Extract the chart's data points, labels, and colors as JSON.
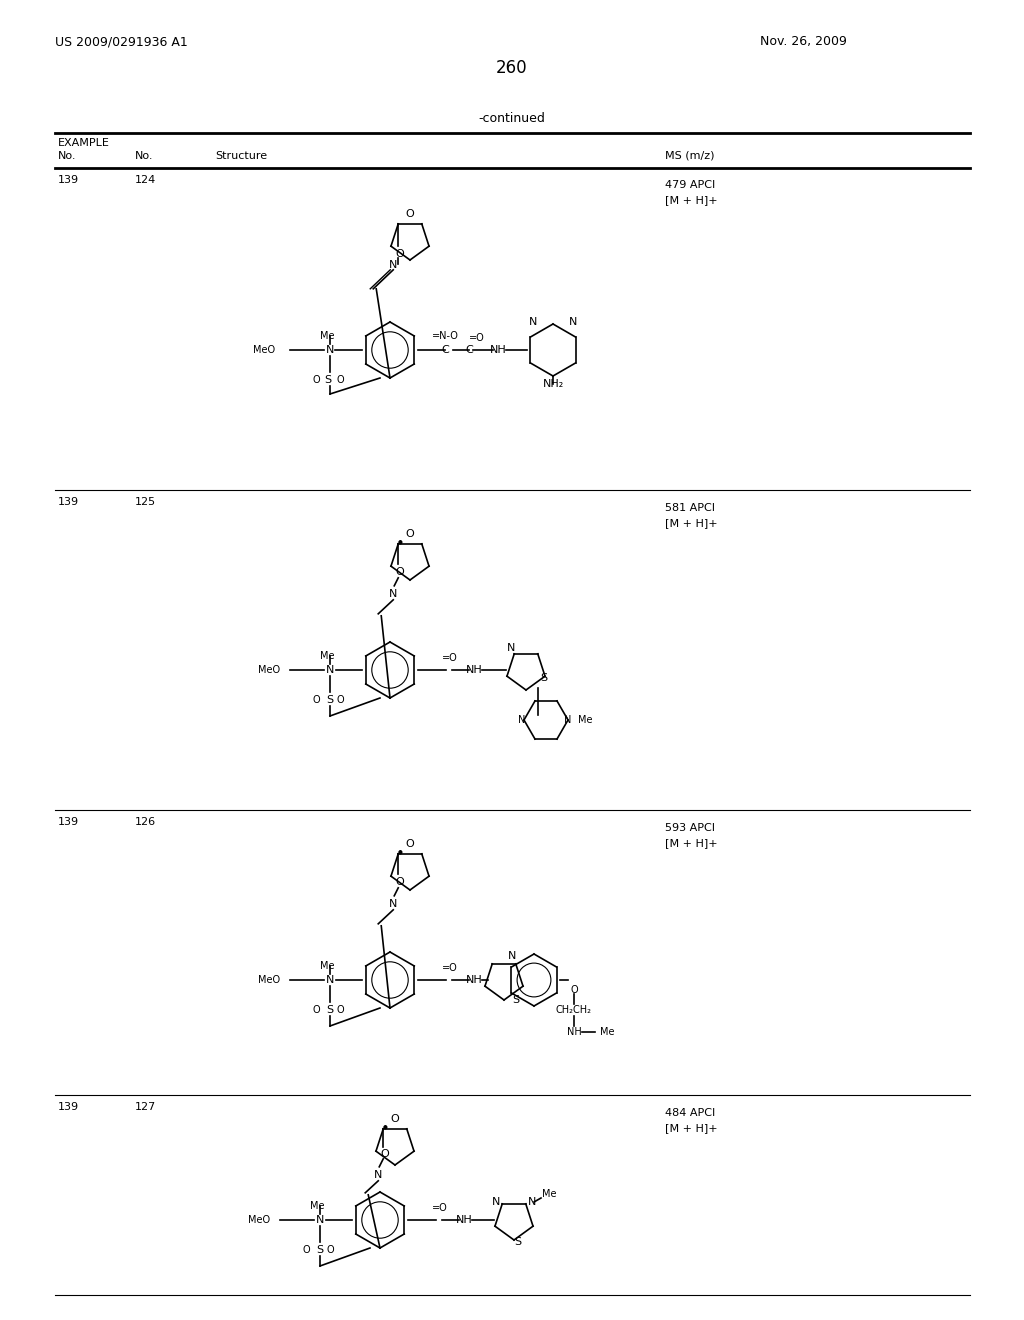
{
  "patent_number": "US 2009/0291936 A1",
  "date": "Nov. 26, 2009",
  "page_number": "260",
  "continued_text": "-continued",
  "table_headers": [
    "EXAMPLE",
    "No.",
    "No.",
    "Structure",
    "MS (m/z)"
  ],
  "rows": [
    {
      "example_no": "139",
      "no": "124",
      "ms": "479 APCI\n[M + H]+"
    },
    {
      "example_no": "139",
      "no": "125",
      "ms": "581 APCI\n[M + H]+"
    },
    {
      "example_no": "139",
      "no": "126",
      "ms": "593 APCI\n[M + H]+"
    },
    {
      "example_no": "139",
      "no": "127",
      "ms": "484 APCI\n[M + H]+"
    }
  ],
  "bg_color": "#ffffff",
  "text_color": "#000000",
  "font_size": 9,
  "title_font_size": 11
}
